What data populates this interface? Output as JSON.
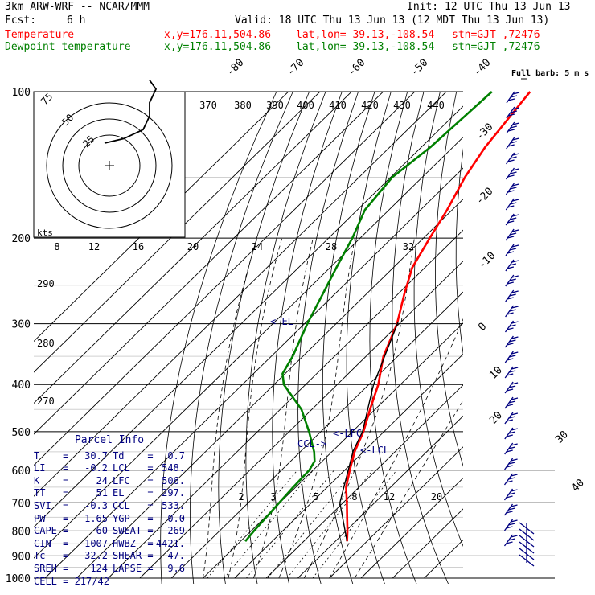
{
  "header": {
    "model": "3km ARW-WRF -- NCAR/MMM",
    "init": "Init: 12 UTC Thu 13 Jun 13",
    "fcst_label": "Fcst:",
    "fcst_value": "6 h",
    "valid": "Valid: 18 UTC Thu 13 Jun 13 (12 MDT Thu 13 Jun 13)",
    "temp_line": {
      "label": "Temperature",
      "xy": "x,y=176.11,504.86",
      "latlon": "lat,lon= 39.13,-108.54",
      "stn": "stn=GJT ,72476"
    },
    "dew_line": {
      "label": "Dewpoint temperature",
      "xy": "x,y=176.11,504.86",
      "latlon": "lat,lon= 39.13,-108.54",
      "stn": "stn=GJT ,72476"
    },
    "colors": {
      "temperature": "#ff0000",
      "dewpoint": "#008000",
      "info": "#000080"
    }
  },
  "parcel_info": {
    "title": "Parcel Info",
    "rows": [
      [
        "T",
        "30.7",
        "Td",
        "0.7"
      ],
      [
        "LI",
        "-0.2",
        "LCL",
        "548."
      ],
      [
        "K",
        "24",
        "LFC",
        "506."
      ],
      [
        "TT",
        "51",
        "EL",
        "297."
      ],
      [
        "SVI",
        "-0.3",
        "CCL",
        "533."
      ],
      [
        "PW",
        "1.65",
        "YGP",
        "0.0"
      ],
      [
        "CAPE",
        "60",
        "SWEAT",
        "269"
      ],
      [
        "CIN",
        "-1007",
        "HWBZ",
        "4421."
      ],
      [
        "Tc",
        "32.2",
        "SHEAR",
        "47."
      ],
      [
        "SREH",
        "124",
        "LAPSE",
        "9.6"
      ]
    ],
    "cell": "CELL = 217/42"
  },
  "chart_data": {
    "type": "line",
    "diagram": "skew-T log-p",
    "pressure_levels": [
      100,
      200,
      300,
      400,
      500,
      600,
      700,
      800,
      900,
      1000
    ],
    "isotherm_labels": [
      "-80",
      "-70",
      "-60",
      "-50",
      "-40",
      "-30",
      "-20",
      "-10",
      "0",
      "10",
      "20",
      "30",
      "40"
    ],
    "mixing_ratio_labels": [
      "2",
      "3",
      "5",
      "8",
      "12",
      "20"
    ],
    "theta_labels": [
      "290",
      "280",
      "270"
    ],
    "hodograph": {
      "speed_unit": "kts",
      "ring_labels": [
        "25",
        "50",
        "75"
      ],
      "u_axis_labels": [
        "8",
        "12",
        "16",
        "20",
        "24",
        "28",
        "32"
      ],
      "theta_e_labels": [
        "370",
        "380",
        "390",
        "400",
        "410",
        "420",
        "430",
        "440"
      ],
      "trace": [
        [
          0,
          0
        ],
        [
          6,
          2
        ],
        [
          12,
          6
        ],
        [
          14,
          12
        ],
        [
          14,
          18
        ],
        [
          16,
          24
        ],
        [
          14,
          28
        ]
      ]
    },
    "series": [
      {
        "name": "Temperature",
        "color": "#ff0000",
        "points": [
          [
            100,
            -63.5
          ],
          [
            130,
            -59.8
          ],
          [
            150,
            -56.5
          ],
          [
            175,
            -51.6
          ],
          [
            200,
            -48.0
          ],
          [
            230,
            -44.0
          ],
          [
            260,
            -38.1
          ],
          [
            300,
            -30.7
          ],
          [
            350,
            -24.5
          ],
          [
            400,
            -17.0
          ],
          [
            450,
            -11.6
          ],
          [
            500,
            -6.5
          ],
          [
            550,
            -2.8
          ],
          [
            600,
            1.6
          ],
          [
            650,
            5.9
          ],
          [
            700,
            11.2
          ],
          [
            750,
            16.0
          ],
          [
            800,
            20.5
          ],
          [
            840,
            23.7
          ]
        ]
      },
      {
        "name": "Dewpoint temperature",
        "color": "#008000",
        "points": [
          [
            100,
            -75.6
          ],
          [
            130,
            -77.1
          ],
          [
            150,
            -79.5
          ],
          [
            175,
            -77.6
          ],
          [
            200,
            -72.5
          ],
          [
            230,
            -68.0
          ],
          [
            260,
            -63.9
          ],
          [
            300,
            -59.1
          ],
          [
            350,
            -53.2
          ],
          [
            380,
            -50.8
          ],
          [
            400,
            -46.9
          ],
          [
            450,
            -33.3
          ],
          [
            500,
            -23.7
          ],
          [
            550,
            -15.6
          ],
          [
            575,
            -12.4
          ],
          [
            600,
            -11.2
          ],
          [
            650,
            -10.8
          ],
          [
            700,
            -10.2
          ],
          [
            750,
            -9.6
          ],
          [
            800,
            -9.1
          ],
          [
            840,
            -8.5
          ]
        ]
      }
    ],
    "annotations": [
      {
        "text": "<-EL",
        "pressure": 297
      },
      {
        "text": "<-LFC",
        "pressure": 506
      },
      {
        "text": "<-LCL",
        "pressure": 548
      },
      {
        "text": "CCL->",
        "pressure": 533
      }
    ],
    "wind_barb_header": "Full barb: 5 m s",
    "grid": true
  }
}
